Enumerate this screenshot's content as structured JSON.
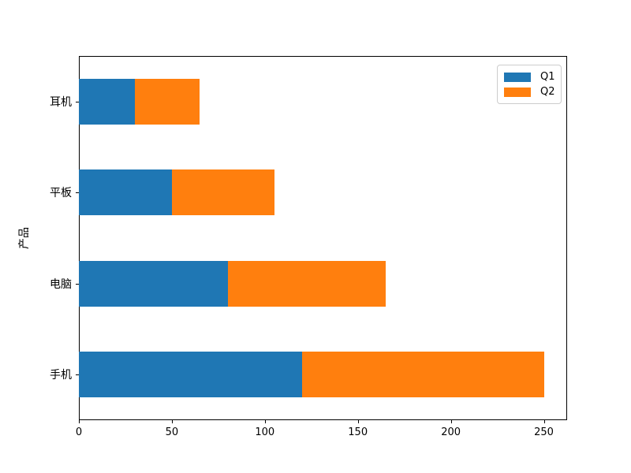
{
  "chart_data": {
    "type": "bar",
    "orientation": "horizontal",
    "stacked": true,
    "categories": [
      "耳机",
      "平板",
      "电脑",
      "手机"
    ],
    "category_order": "top-to-bottom",
    "series": [
      {
        "name": "Q1",
        "color": "#1f77b4",
        "values": [
          30,
          50,
          80,
          120
        ]
      },
      {
        "name": "Q2",
        "color": "#ff7f0e",
        "values": [
          35,
          55,
          85,
          130
        ]
      }
    ],
    "title": "",
    "xlabel": "",
    "ylabel": "产品",
    "xlim": [
      0,
      262.5
    ],
    "xticks": [
      0,
      50,
      100,
      150,
      200,
      250
    ],
    "grid": false,
    "legend": {
      "position": "top-right",
      "entries": [
        "Q1",
        "Q2"
      ]
    },
    "colors": {
      "axis": "#000000",
      "legend_border": "#cccccc",
      "background": "#ffffff"
    }
  }
}
